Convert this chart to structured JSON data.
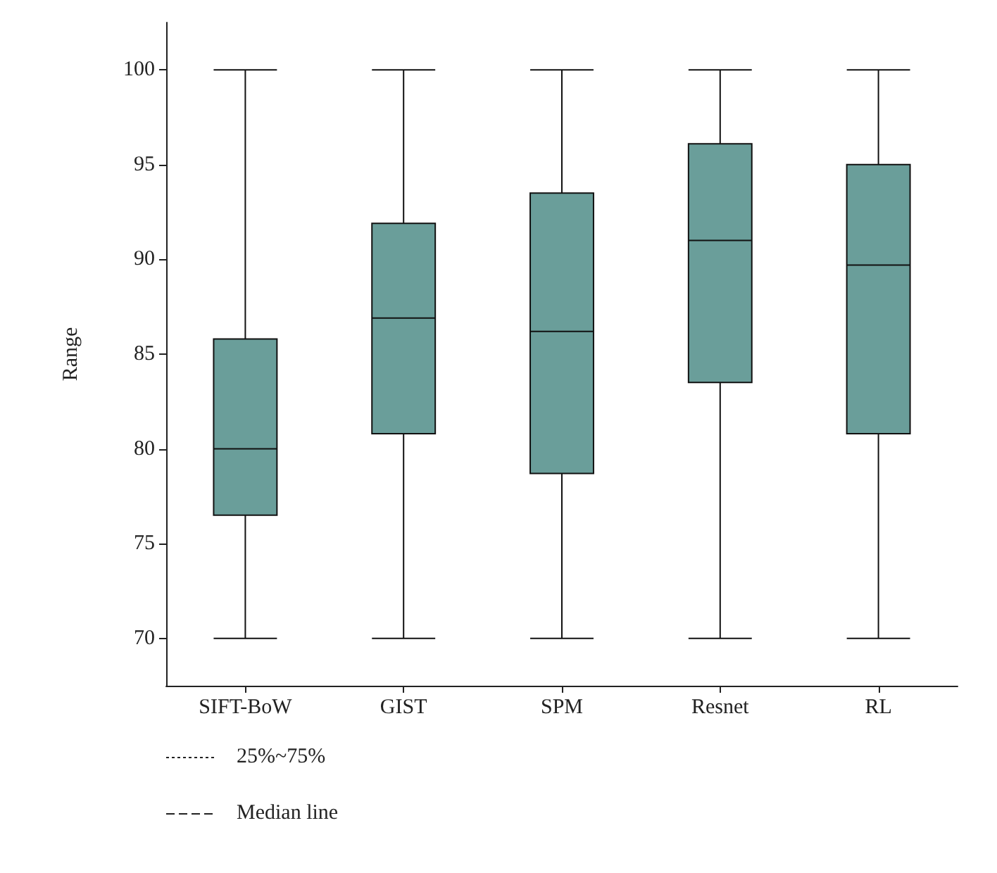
{
  "chart_data": {
    "type": "box",
    "ylabel": "Range",
    "categories": [
      "SIFT-BoW",
      "GIST",
      "SPM",
      "Resnet",
      "RL"
    ],
    "color": "#6a9e9a",
    "boxes": [
      {
        "low": 70,
        "q1": 76.5,
        "median": 80.0,
        "q3": 85.8,
        "high": 100
      },
      {
        "low": 70,
        "q1": 80.8,
        "median": 86.9,
        "q3": 91.9,
        "high": 100
      },
      {
        "low": 70,
        "q1": 78.7,
        "median": 86.2,
        "q3": 93.5,
        "high": 100
      },
      {
        "low": 70,
        "q1": 83.5,
        "median": 91.0,
        "q3": 96.1,
        "high": 100
      },
      {
        "low": 70,
        "q1": 80.8,
        "median": 89.7,
        "q3": 95.0,
        "high": 100
      }
    ],
    "ylim": [
      67.5,
      102.5
    ],
    "yticks": [
      70,
      75,
      80,
      85,
      90,
      95,
      100
    ],
    "grid": false,
    "annotations": [
      "25%~75%",
      "Median line"
    ]
  }
}
